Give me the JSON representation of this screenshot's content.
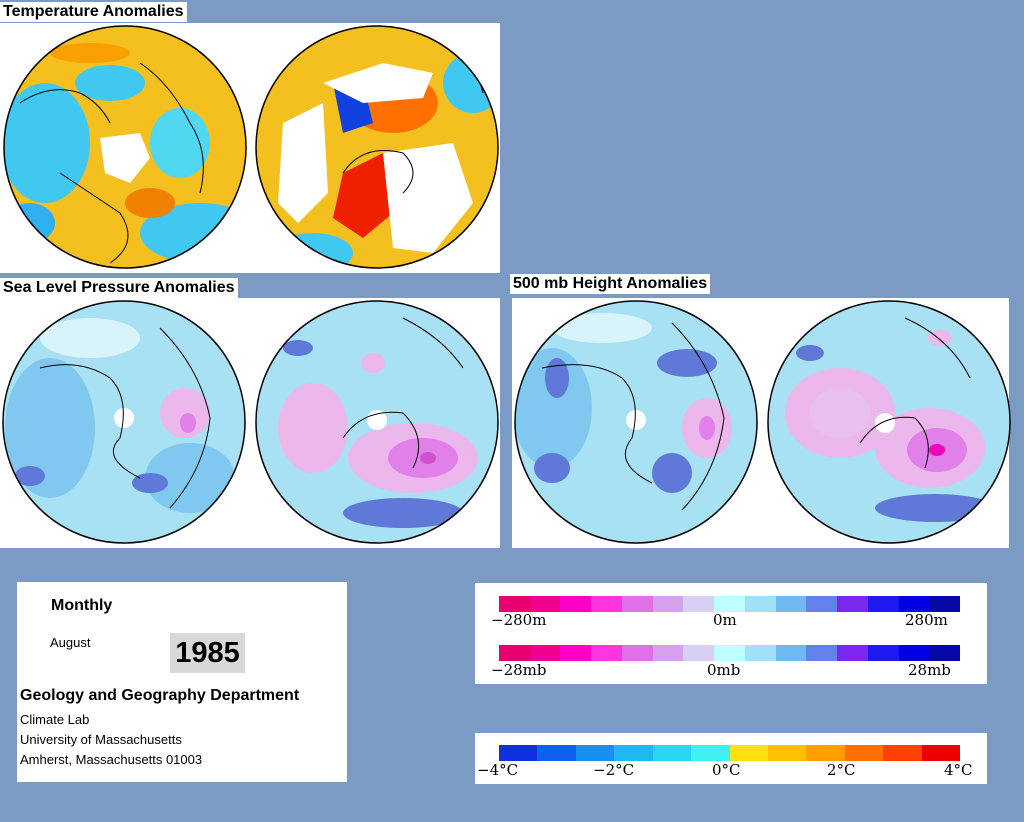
{
  "titles": {
    "temperature": "Temperature Anomalies",
    "slp": "Sea Level Pressure Anomalies",
    "height500": "500 mb Height Anomalies"
  },
  "info": {
    "period": "Monthly",
    "month": "August",
    "year": "1985",
    "department": "Geology and Geography Department",
    "lab": "Climate Lab",
    "university": "University of Massachusetts",
    "address": "Amherst, Massachusetts 01003"
  },
  "legends": {
    "height": {
      "left": "−280m",
      "mid": "0m",
      "right": "280m"
    },
    "pressure": {
      "left": "−28mb",
      "mid": "0mb",
      "right": "28mb"
    },
    "temperature": {
      "t1": "−4°C",
      "t2": "−2°C",
      "t3": "0°C",
      "t4": "2°C",
      "t5": "4°C"
    }
  },
  "colors": {
    "diverging_pressure": [
      "#e8006e",
      "#f0008c",
      "#ff00c8",
      "#ff36e0",
      "#e070e8",
      "#d6a0ec",
      "#d8d0f4",
      "#c0ffff",
      "#a0e0f8",
      "#70b8f0",
      "#6480ec",
      "#7a28f0",
      "#2018f0",
      "#0000e0",
      "#0808a8"
    ],
    "temperature": [
      "#1030e0",
      "#1060f0",
      "#1890f0",
      "#20b8f0",
      "#28d8f0",
      "#40f0f0",
      "#ffe010",
      "#ffc000",
      "#ffa000",
      "#ff7000",
      "#ff4000",
      "#ee0000"
    ],
    "sea": "#a8e0f4",
    "neg_light": "#80c8f0",
    "neg_strong": "#6078d8",
    "pos_light": "#ecb8ec",
    "pos_strong": "#e080e8",
    "pos_core": "#f000c0",
    "temp_base": "#f4c020",
    "temp_cool": "#40c8f0",
    "temp_warm": "#ff7000",
    "temp_hot": "#ee2000",
    "temp_cold": "#1040e0"
  }
}
